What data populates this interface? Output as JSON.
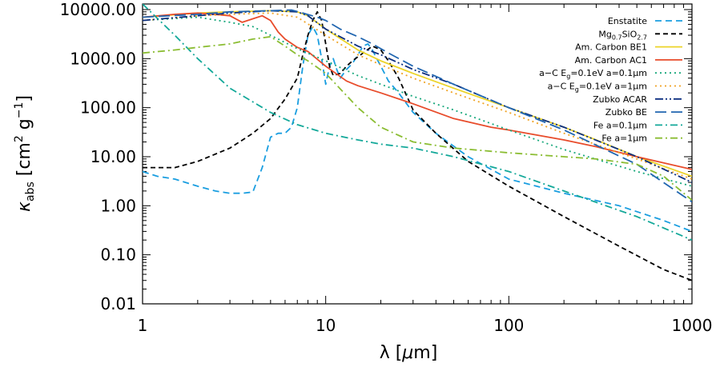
{
  "chart_data": {
    "type": "line",
    "title": "",
    "x_scale": "log",
    "y_scale": "log",
    "xlim": [
      1,
      1000
    ],
    "ylim": [
      0.01,
      13000
    ],
    "x_ticks": [
      {
        "value": 1,
        "label": "1"
      },
      {
        "value": 10,
        "label": "10"
      },
      {
        "value": 100,
        "label": "100"
      },
      {
        "value": 1000,
        "label": "1000"
      }
    ],
    "y_ticks": [
      {
        "value": 0.01,
        "label": "0.01"
      },
      {
        "value": 0.1,
        "label": "0.10"
      },
      {
        "value": 1,
        "label": "1.00"
      },
      {
        "value": 10,
        "label": "10.00"
      },
      {
        "value": 100,
        "label": "100.00"
      },
      {
        "value": 1000,
        "label": "1000.00"
      },
      {
        "value": 10000,
        "label": "10000.00"
      }
    ],
    "xlabel_prefix": "λ [",
    "xlabel_unit_greek": "μ",
    "xlabel_unit_rest": "m]",
    "ylabel_symbol": "κ",
    "ylabel_sub": "abs",
    "ylabel_unit_open": " [cm",
    "ylabel_unit_exp1": "2",
    "ylabel_unit_mid": " g",
    "ylabel_unit_exp2": "−1",
    "ylabel_unit_close": "]",
    "legend_position": "top-right",
    "series": [
      {
        "name": "Enstatite",
        "color": "#1a9ee0",
        "dash": "8,5",
        "x": [
          1,
          1.2,
          1.5,
          2,
          2.5,
          3,
          3.5,
          4,
          4.5,
          5,
          5.5,
          6,
          6.5,
          7,
          7.5,
          8,
          8.5,
          9,
          9.5,
          10,
          10.5,
          11,
          11.5,
          12,
          13,
          14,
          15,
          16,
          17,
          18,
          19,
          20,
          22,
          25,
          30,
          40,
          60,
          100,
          200,
          400,
          700,
          1000
        ],
        "y": [
          5,
          4,
          3.5,
          2.5,
          2,
          1.8,
          1.8,
          1.9,
          6,
          25,
          30,
          30,
          40,
          100,
          700,
          3000,
          4500,
          3000,
          1000,
          300,
          700,
          1000,
          600,
          400,
          600,
          800,
          1200,
          1800,
          2000,
          1500,
          1000,
          700,
          350,
          200,
          80,
          30,
          10,
          3.5,
          1.8,
          1,
          0.5,
          0.3
        ]
      },
      {
        "name": "Mg0.7SiO2.7",
        "label_main": "Mg",
        "label_sub1": "0.7",
        "label_mid": "SiO",
        "label_sub2": "2.7",
        "color": "#000000",
        "dash": "6,4",
        "x": [
          1,
          1.5,
          2,
          3,
          4,
          5,
          6,
          7,
          7.5,
          8,
          8.5,
          9,
          9.5,
          10,
          10.5,
          11,
          12,
          13,
          14,
          16,
          18,
          20,
          22,
          25,
          30,
          40,
          60,
          100,
          200,
          400,
          700,
          1000
        ],
        "y": [
          6,
          6,
          8,
          15,
          30,
          60,
          150,
          400,
          1200,
          3000,
          6000,
          9000,
          6000,
          2000,
          700,
          450,
          500,
          700,
          900,
          1300,
          1800,
          1500,
          900,
          400,
          90,
          30,
          8,
          2.5,
          0.6,
          0.15,
          0.05,
          0.03
        ]
      },
      {
        "name": "Am. Carbon BE1",
        "color": "#ecd42a",
        "dash": "",
        "x": [
          1,
          2,
          3,
          5,
          7,
          8,
          10,
          15,
          20,
          30,
          50,
          100,
          200,
          300,
          500,
          1000
        ],
        "y": [
          7000,
          8500,
          9000,
          9500,
          9000,
          7500,
          4000,
          1500,
          900,
          500,
          250,
          100,
          40,
          22,
          10,
          4
        ]
      },
      {
        "name": "Am. Carbon AC1",
        "color": "#e84c2b",
        "dash": "",
        "x": [
          1,
          1.5,
          2,
          3,
          3.5,
          4,
          4.5,
          5,
          5.5,
          6,
          7,
          8,
          10,
          13,
          15,
          20,
          30,
          50,
          80,
          100,
          200,
          300,
          500,
          1000
        ],
        "y": [
          7000,
          8000,
          8500,
          7500,
          5500,
          6500,
          7500,
          6000,
          3500,
          2500,
          1700,
          1400,
          700,
          350,
          280,
          200,
          120,
          60,
          40,
          35,
          22,
          16,
          10,
          5.5
        ]
      },
      {
        "name": "a-C Eg=0.1eV a=0.1μm",
        "label_pre": "a−C E",
        "label_sub": "g",
        "label_post": "=0.1eV a=0.1μm",
        "color": "#18a87c",
        "dash": "2,4",
        "x": [
          1,
          2,
          3,
          4,
          5,
          7,
          10,
          15,
          20,
          30,
          50,
          100,
          200,
          500,
          1000
        ],
        "y": [
          6000,
          7000,
          5500,
          4500,
          3000,
          1600,
          900,
          450,
          300,
          170,
          90,
          35,
          14,
          5,
          2.5
        ]
      },
      {
        "name": "a-C Eg=0.1eV a=1μm",
        "label_pre": "a−C E",
        "label_sub": "g",
        "label_post": "=0.1eV a=1μm",
        "color": "#f0a425",
        "dash": "2,4",
        "x": [
          1,
          2,
          3,
          5,
          7,
          10,
          15,
          20,
          30,
          50,
          100,
          200,
          500,
          1000
        ],
        "y": [
          6000,
          7500,
          8000,
          8500,
          7000,
          3000,
          1200,
          750,
          400,
          200,
          80,
          30,
          9,
          3.5
        ]
      },
      {
        "name": "Zubko ACAR",
        "color": "#0c2f80",
        "dash": "10,3,2,3,2,3",
        "x": [
          1,
          2,
          3,
          5,
          7,
          8,
          10,
          15,
          20,
          30,
          50,
          100,
          200,
          500,
          1000
        ],
        "y": [
          6000,
          7500,
          8500,
          9500,
          9000,
          7500,
          4000,
          1800,
          1200,
          600,
          300,
          100,
          40,
          10,
          3
        ]
      },
      {
        "name": "Zubko BE",
        "color": "#2166b0",
        "dash": "14,6",
        "x": [
          1,
          2,
          3,
          5,
          6.5,
          7.5,
          9,
          10,
          12,
          15,
          18,
          22,
          30,
          50,
          100,
          200,
          500,
          1000
        ],
        "y": [
          7000,
          8000,
          9000,
          9500,
          9800,
          8500,
          7000,
          6000,
          4000,
          2800,
          2000,
          1300,
          700,
          300,
          100,
          35,
          7,
          1.2
        ]
      },
      {
        "name": "Fe a=0.1μm",
        "label_pre": "Fe a=0.1μm",
        "color": "#13a899",
        "dash": "9,4,2,4",
        "x": [
          1,
          1.5,
          2,
          3,
          5,
          7,
          10,
          15,
          20,
          30,
          50,
          100,
          200,
          500,
          1000
        ],
        "y": [
          13000,
          3000,
          1000,
          250,
          80,
          45,
          30,
          22,
          18,
          15,
          10,
          5,
          2,
          0.6,
          0.2
        ]
      },
      {
        "name": "Fe a=1μm",
        "label_pre": "Fe a=1μm",
        "color": "#8bbd33",
        "dash": "9,4,2,4",
        "x": [
          1,
          1.5,
          2,
          3,
          4,
          5,
          6,
          7,
          8,
          10,
          15,
          20,
          30,
          50,
          100,
          200,
          300,
          500,
          700,
          1000
        ],
        "y": [
          1300,
          1500,
          1700,
          2000,
          2500,
          2800,
          1800,
          1200,
          900,
          500,
          100,
          40,
          20,
          15,
          12,
          10,
          9,
          7,
          4,
          1.3
        ]
      }
    ]
  }
}
